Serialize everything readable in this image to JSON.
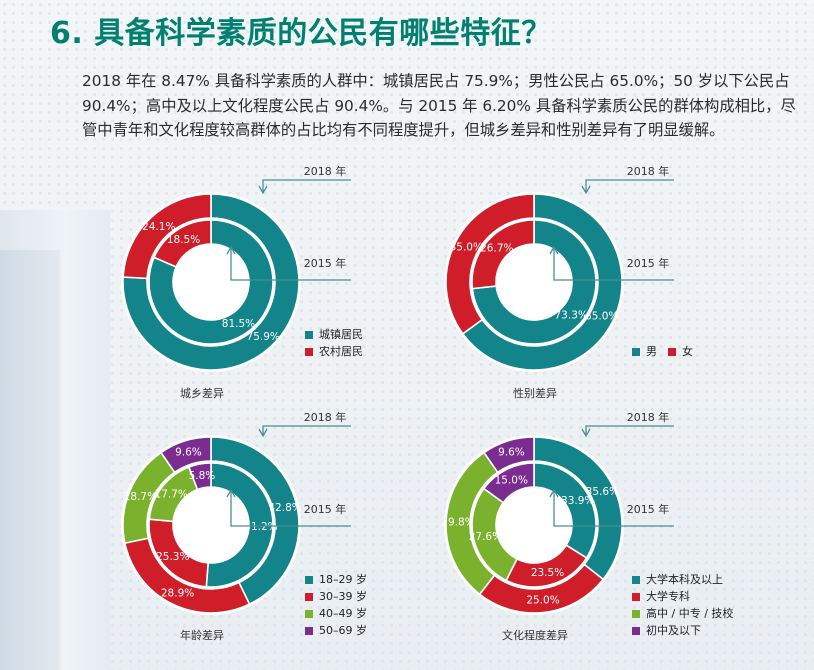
{
  "title": "6. 具备科学素质的公民有哪些特征？",
  "paragraph": "2018 年在 8.47% 具备科学素质的人群中：城镇居民占 75.9%；男性公民占 65.0%；50 岁以下公民占 90.4%；高中及以上文化程度公民占 90.4%。与 2015 年 6.20% 具备科学素质公民的群体构成相比，尽管中青年和文化程度较高群体的占比均有不同程度提升，但城乡差异和性别差异有了明显缓解。",
  "colors": {
    "teal": "#138489",
    "red": "#cf1d2a",
    "green": "#7ab22e",
    "purple": "#7b2c91",
    "title": "#00806e"
  },
  "chart_data": [
    {
      "type": "donut",
      "title": "城乡差异",
      "outer_label": "2018 年",
      "inner_label": "2015 年",
      "categories": [
        "城镇居民",
        "农村居民"
      ],
      "series": [
        {
          "name": "2018 年",
          "values": [
            75.9,
            24.1
          ]
        },
        {
          "name": "2015 年",
          "values": [
            81.5,
            18.5
          ]
        }
      ],
      "value_labels": {
        "outer": [
          "75.9%",
          "24.1%"
        ],
        "inner": [
          "81.5%",
          "18.5%"
        ]
      }
    },
    {
      "type": "donut",
      "title": "性别差异",
      "outer_label": "2018 年",
      "inner_label": "2015 年",
      "categories": [
        "男",
        "女"
      ],
      "series": [
        {
          "name": "2018 年",
          "values": [
            65.0,
            35.0
          ]
        },
        {
          "name": "2015 年",
          "values": [
            73.3,
            26.7
          ]
        }
      ],
      "value_labels": {
        "outer": [
          "65.0%",
          "35.0%"
        ],
        "inner": [
          "73.3%",
          "26.7%"
        ]
      }
    },
    {
      "type": "donut",
      "title": "年龄差异",
      "outer_label": "2018 年",
      "inner_label": "2015 年",
      "categories": [
        "18–29 岁",
        "30–39 岁",
        "40–49 岁",
        "50–69 岁"
      ],
      "series": [
        {
          "name": "2018 年",
          "values": [
            42.8,
            28.9,
            18.7,
            9.6
          ]
        },
        {
          "name": "2015 年",
          "values": [
            51.2,
            25.3,
            17.7,
            5.8
          ]
        }
      ],
      "value_labels": {
        "outer": [
          "42.8%",
          "28.9%",
          "18.7%",
          "9.6%"
        ],
        "inner": [
          "51.2%",
          "25.3%",
          "17.7%",
          "5.8%"
        ]
      }
    },
    {
      "type": "donut",
      "title": "文化程度差异",
      "outer_label": "2018 年",
      "inner_label": "2015 年",
      "categories": [
        "大学本科及以上",
        "大学专科",
        "高中 / 中专 / 技校",
        "初中及以下"
      ],
      "series": [
        {
          "name": "2018 年",
          "values": [
            35.6,
            25.0,
            29.8,
            9.6
          ]
        },
        {
          "name": "2015 年",
          "values": [
            33.9,
            23.5,
            27.6,
            15.0
          ]
        }
      ],
      "value_labels": {
        "outer": [
          "35.6%",
          "25.0%",
          "29.8%",
          "9.6%"
        ],
        "inner": [
          "33.9%",
          "23.5%",
          "27.6%",
          "15.0%"
        ]
      }
    }
  ]
}
